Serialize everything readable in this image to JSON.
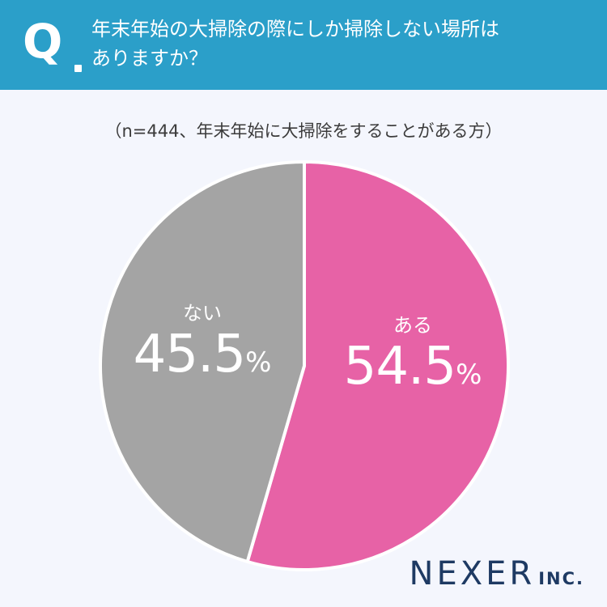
{
  "header": {
    "q_mark": "Q",
    "question_line1": "年末年始の大掃除の際にしか掃除しない場所は",
    "question_line2": "ありますか？"
  },
  "subtitle": "（n=444、年末年始に大掃除をすることがある方）",
  "chart_data": {
    "type": "pie",
    "slices": [
      {
        "label": "ある",
        "value": 54.5,
        "value_text": "54.5",
        "color": "#e762a6"
      },
      {
        "label": "ない",
        "value": 45.5,
        "value_text": "45.5",
        "color": "#a4a4a4"
      }
    ],
    "unit": "%",
    "start": "top",
    "direction": "clockwise"
  },
  "brand": {
    "main": "NEXER",
    "sub": "INC."
  }
}
